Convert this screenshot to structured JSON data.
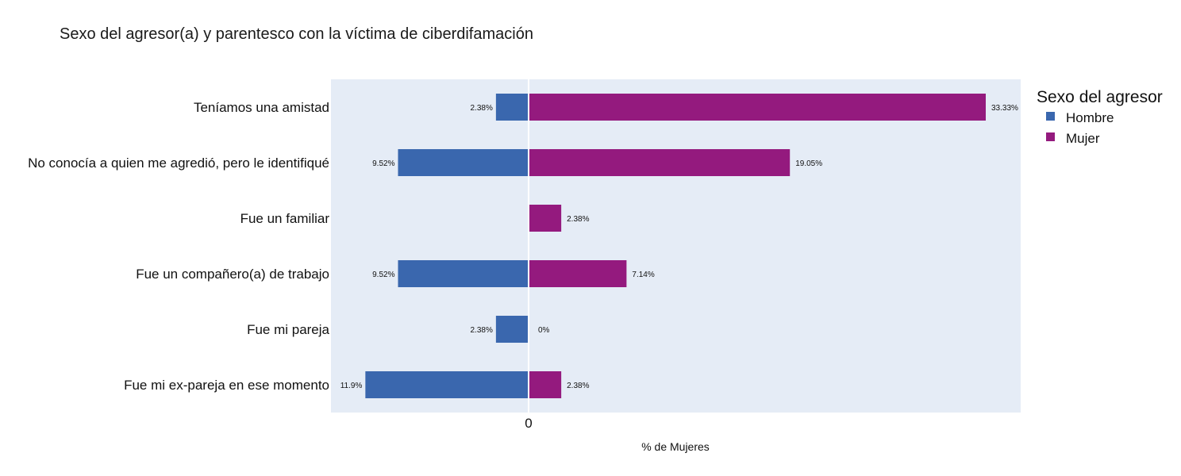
{
  "chart_data": {
    "type": "bar",
    "orientation": "horizontal",
    "title": "Sexo del agresor(a) y parentesco con la víctima de ciberdifamación",
    "xlabel": "% de Mujeres",
    "ylabel": "",
    "x_tick_labels": [
      "0"
    ],
    "grid": false,
    "legend": {
      "title": "Sexo del agresor",
      "placement": "top-right"
    },
    "categories": [
      "Teníamos una amistad",
      "No conocía a quien me agredió, pero le identifiqué",
      "Fue un familiar",
      "Fue un compañero(a) de trabajo",
      "Fue mi pareja",
      "Fue mi ex-pareja en ese momento"
    ],
    "series": [
      {
        "name": "Hombre",
        "color": "#3a67ae",
        "direction": "left",
        "values": [
          2.38,
          9.52,
          0,
          9.52,
          2.38,
          11.9
        ],
        "labels": [
          "2.38%",
          "9.52%",
          "",
          "9.52%",
          "2.38%",
          "11.9%"
        ]
      },
      {
        "name": "Mujer",
        "color": "#941a7e",
        "direction": "right",
        "values": [
          33.33,
          19.05,
          2.38,
          7.14,
          0,
          2.38
        ],
        "labels": [
          "33.33%",
          "19.05%",
          "2.38%",
          "7.14%",
          "0%",
          "2.38%"
        ]
      }
    ],
    "plot_background": "#e5ecf6"
  }
}
